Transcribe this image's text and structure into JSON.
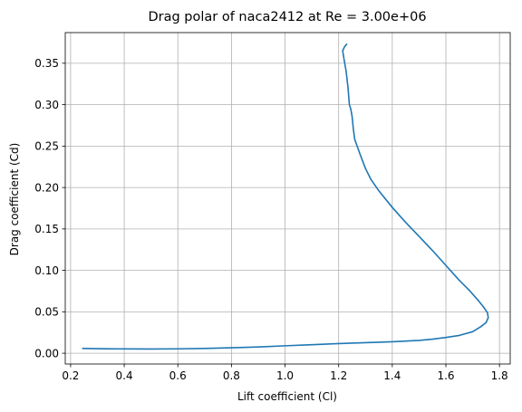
{
  "chart_data": {
    "type": "line",
    "title": "Drag polar of naca2412 at Re = 3.00e+06",
    "xlabel": "Lift coefficient (Cl)",
    "ylabel": "Drag coefficient (Cd)",
    "xlim": [
      0.18,
      1.84
    ],
    "ylim": [
      -0.013,
      0.387
    ],
    "xticks": [
      0.2,
      0.4,
      0.6,
      0.8,
      1.0,
      1.2,
      1.4,
      1.6,
      1.8
    ],
    "yticks": [
      0.0,
      0.05,
      0.1,
      0.15,
      0.2,
      0.25,
      0.3,
      0.35
    ],
    "xtick_labels": [
      "0.2",
      "0.4",
      "0.6",
      "0.8",
      "1.0",
      "1.2",
      "1.4",
      "1.6",
      "1.8"
    ],
    "ytick_labels": [
      "0.00",
      "0.05",
      "0.10",
      "0.15",
      "0.20",
      "0.25",
      "0.30",
      "0.35"
    ],
    "grid": true,
    "series": [
      {
        "color": "#1f77b4",
        "points": [
          [
            0.245,
            0.0058
          ],
          [
            0.3,
            0.0055
          ],
          [
            0.4,
            0.0052
          ],
          [
            0.5,
            0.0051
          ],
          [
            0.6,
            0.0053
          ],
          [
            0.7,
            0.0058
          ],
          [
            0.8,
            0.0066
          ],
          [
            0.9,
            0.0076
          ],
          [
            1.0,
            0.009
          ],
          [
            1.1,
            0.0103
          ],
          [
            1.2,
            0.0117
          ],
          [
            1.3,
            0.0127
          ],
          [
            1.4,
            0.0138
          ],
          [
            1.5,
            0.0155
          ],
          [
            1.55,
            0.017
          ],
          [
            1.6,
            0.019
          ],
          [
            1.65,
            0.0215
          ],
          [
            1.7,
            0.026
          ],
          [
            1.73,
            0.032
          ],
          [
            1.75,
            0.037
          ],
          [
            1.758,
            0.043
          ],
          [
            1.755,
            0.049
          ],
          [
            1.74,
            0.056
          ],
          [
            1.72,
            0.064
          ],
          [
            1.69,
            0.075
          ],
          [
            1.65,
            0.088
          ],
          [
            1.6,
            0.106
          ],
          [
            1.55,
            0.124
          ],
          [
            1.5,
            0.141
          ],
          [
            1.45,
            0.158
          ],
          [
            1.4,
            0.176
          ],
          [
            1.35,
            0.196
          ],
          [
            1.32,
            0.21
          ],
          [
            1.3,
            0.223
          ],
          [
            1.28,
            0.24
          ],
          [
            1.26,
            0.258
          ],
          [
            1.255,
            0.27
          ],
          [
            1.25,
            0.286
          ],
          [
            1.245,
            0.295
          ],
          [
            1.24,
            0.3
          ],
          [
            1.235,
            0.32
          ],
          [
            1.228,
            0.34
          ],
          [
            1.22,
            0.355
          ],
          [
            1.215,
            0.365
          ],
          [
            1.222,
            0.37
          ],
          [
            1.23,
            0.373
          ]
        ]
      }
    ]
  }
}
